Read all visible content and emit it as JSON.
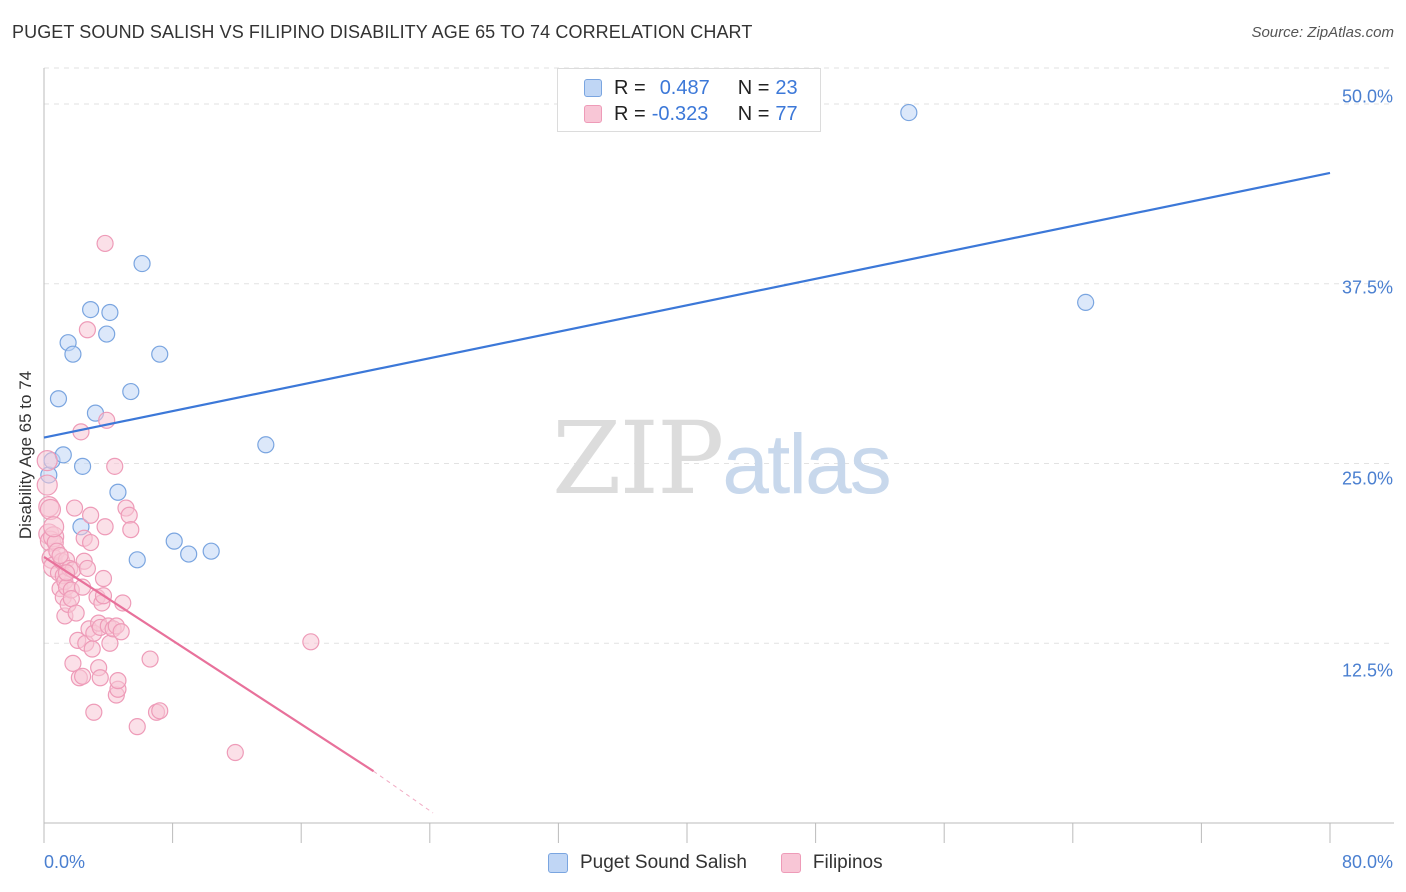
{
  "title": "PUGET SOUND SALISH VS FILIPINO DISABILITY AGE 65 TO 74 CORRELATION CHART",
  "source": "Source: ZipAtlas.com",
  "watermark": {
    "part1": "ZIP",
    "part2": "atlas"
  },
  "legend": {
    "r_label": "R =",
    "n_label": "N =",
    "series": [
      {
        "name": "Puget Sound Salish",
        "r": "0.487",
        "n": "23"
      },
      {
        "name": "Filipinos",
        "r": "-0.323",
        "n": "77"
      }
    ]
  },
  "colors": {
    "blue": "#3c78d8",
    "blue_fill": "#c0d6f5",
    "blue_stroke": "#7aa5e0",
    "pink": "#e8719b",
    "pink_fill": "#f8c6d6",
    "pink_stroke": "#ee9bb8",
    "grid": "#e2e2e2",
    "axis": "#bbbbbb",
    "tick_label": "#4a7fd0"
  },
  "chart_data": {
    "type": "scatter",
    "title": "PUGET SOUND SALISH VS FILIPINO DISABILITY AGE 65 TO 74 CORRELATION CHART",
    "xlabel": "",
    "ylabel": "Disability Age 65 to 74",
    "xlim": [
      0,
      80
    ],
    "ylim": [
      0,
      52.5
    ],
    "x_tick_labels": [
      "0.0%",
      "80.0%"
    ],
    "y_ticks": [
      12.5,
      25.0,
      37.5,
      50.0
    ],
    "y_tick_labels": [
      "12.5%",
      "25.0%",
      "37.5%",
      "50.0%"
    ],
    "series": [
      {
        "name": "Puget Sound Salish",
        "color": "#3c78d8",
        "points": [
          [
            0.3,
            24.2
          ],
          [
            0.5,
            25.2
          ],
          [
            0.9,
            29.5
          ],
          [
            1.2,
            25.6
          ],
          [
            1.5,
            33.4
          ],
          [
            1.8,
            32.6
          ],
          [
            2.3,
            20.6
          ],
          [
            2.4,
            24.8
          ],
          [
            2.9,
            35.7
          ],
          [
            3.2,
            28.5
          ],
          [
            3.9,
            34.0
          ],
          [
            4.1,
            35.5
          ],
          [
            4.6,
            23.0
          ],
          [
            5.4,
            30.0
          ],
          [
            5.8,
            18.3
          ],
          [
            6.1,
            38.9
          ],
          [
            7.2,
            32.6
          ],
          [
            8.1,
            19.6
          ],
          [
            9.0,
            18.7
          ],
          [
            10.4,
            18.9
          ],
          [
            13.8,
            26.3
          ],
          [
            53.8,
            49.4
          ],
          [
            64.8,
            36.2
          ]
        ],
        "trend": {
          "x0": 0,
          "y0": 26.8,
          "x1": 80,
          "y1": 45.2
        }
      },
      {
        "name": "Filipinos",
        "color": "#e8719b",
        "points": [
          [
            0.2,
            23.5
          ],
          [
            0.3,
            22.0
          ],
          [
            0.3,
            20.1
          ],
          [
            0.4,
            19.6
          ],
          [
            0.5,
            18.4
          ],
          [
            0.6,
            19.9
          ],
          [
            0.6,
            17.8
          ],
          [
            0.7,
            19.5
          ],
          [
            0.8,
            18.9
          ],
          [
            0.9,
            17.4
          ],
          [
            1.0,
            16.3
          ],
          [
            1.1,
            18.2
          ],
          [
            1.2,
            15.7
          ],
          [
            1.2,
            17.2
          ],
          [
            1.3,
            16.8
          ],
          [
            1.3,
            14.4
          ],
          [
            1.4,
            18.3
          ],
          [
            1.4,
            16.4
          ],
          [
            1.5,
            15.2
          ],
          [
            1.6,
            17.7
          ],
          [
            1.7,
            16.2
          ],
          [
            1.7,
            15.6
          ],
          [
            1.8,
            11.1
          ],
          [
            1.8,
            17.6
          ],
          [
            1.9,
            21.9
          ],
          [
            2.0,
            14.6
          ],
          [
            2.1,
            12.7
          ],
          [
            2.2,
            10.1
          ],
          [
            2.3,
            27.2
          ],
          [
            2.4,
            16.4
          ],
          [
            2.4,
            10.2
          ],
          [
            2.5,
            18.2
          ],
          [
            2.5,
            19.8
          ],
          [
            2.6,
            12.5
          ],
          [
            2.7,
            17.7
          ],
          [
            2.7,
            34.3
          ],
          [
            2.8,
            13.5
          ],
          [
            2.9,
            21.4
          ],
          [
            2.9,
            19.5
          ],
          [
            3.0,
            12.1
          ],
          [
            3.1,
            13.2
          ],
          [
            3.1,
            7.7
          ],
          [
            3.3,
            15.7
          ],
          [
            3.4,
            10.8
          ],
          [
            3.4,
            13.9
          ],
          [
            3.5,
            10.1
          ],
          [
            3.5,
            13.6
          ],
          [
            3.6,
            15.3
          ],
          [
            3.7,
            15.8
          ],
          [
            3.7,
            17.0
          ],
          [
            3.8,
            40.3
          ],
          [
            3.8,
            20.6
          ],
          [
            3.9,
            28.0
          ],
          [
            4.0,
            13.7
          ],
          [
            4.1,
            12.5
          ],
          [
            4.3,
            13.5
          ],
          [
            4.4,
            24.8
          ],
          [
            4.5,
            13.7
          ],
          [
            4.5,
            8.9
          ],
          [
            4.6,
            9.3
          ],
          [
            4.6,
            9.9
          ],
          [
            4.8,
            13.3
          ],
          [
            4.9,
            15.3
          ],
          [
            5.1,
            21.9
          ],
          [
            5.3,
            21.4
          ],
          [
            5.4,
            20.4
          ],
          [
            5.8,
            6.7
          ],
          [
            6.6,
            11.4
          ],
          [
            7.0,
            7.7
          ],
          [
            7.2,
            7.8
          ],
          [
            11.9,
            4.9
          ],
          [
            16.6,
            12.6
          ],
          [
            0.2,
            25.2
          ],
          [
            0.4,
            21.8
          ],
          [
            0.6,
            20.6
          ],
          [
            1.0,
            18.6
          ],
          [
            1.4,
            17.4
          ]
        ],
        "trend": {
          "x0": 0,
          "y0": 18.5,
          "x1": 20.5,
          "y1": 3.6
        },
        "trend_dashed": {
          "x0": 20.5,
          "y0": 3.6,
          "x1": 24.2,
          "y1": 0.7
        }
      }
    ]
  }
}
